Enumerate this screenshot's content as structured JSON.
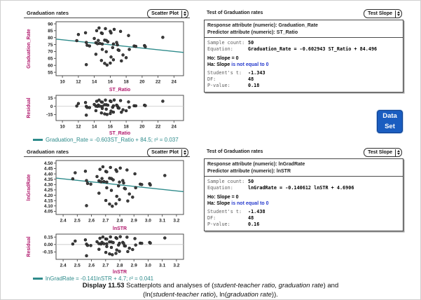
{
  "colors": {
    "line_teal": "#2e8b8b",
    "axis_magenta": "#b0176c",
    "hypothesis_blue": "#2438cc",
    "badge_blue": "#1a5dc0"
  },
  "top": {
    "graph_window": {
      "title": "Graduation rates",
      "dropdown": "Scatter Plot",
      "legend": "Graduation_Rate = -0.603ST_Ratio + 84.5; r² = 0.037"
    },
    "test_panel": {
      "title": "Test of Graduation rates",
      "dropdown": "Test Slope",
      "response": "Response attribute (numeric): Graduation_Rate",
      "predictor": "Predictor attribute (numeric): ST_Ratio",
      "sample_count_label": "Sample count:",
      "sample_count": "50",
      "equation_label": "Equation:",
      "equation": "Graduation_Rate = -0.602943 ST_Ratio + 84.496",
      "ho_label": "Ho:",
      "ho_text": "Slope = 0",
      "ha_label": "Ha:",
      "ha_prefix": "Slope",
      "ha_blue": "is not equal to",
      "ha_value": "0",
      "t_label": "Student's t:",
      "t_value": "-1.343",
      "df_label": "DF:",
      "df_value": "48",
      "p_label": "P-value:",
      "p_value": "0.18"
    }
  },
  "bottom": {
    "graph_window": {
      "title": "Graduation rates",
      "dropdown": "Scatter Plot",
      "legend": "lnGradRate = -0.141lnSTR + 4.7; r² = 0.041"
    },
    "test_panel": {
      "title": "Test of Graduation rates",
      "dropdown": "Test Slope",
      "response": "Response attribute (numeric): lnGradRate",
      "predictor": "Predictor attribute (numeric): lnSTR",
      "sample_count_label": "Sample count:",
      "sample_count": "50",
      "equation_label": "Equation:",
      "equation": "lnGradRate = -0.140612 lnSTR + 4.6906",
      "ho_label": "Ho:",
      "ho_text": "Slope = 0",
      "ha_label": "Ha:",
      "ha_prefix": "Slope",
      "ha_blue": "is not equal to",
      "ha_value": "0",
      "t_label": "Student's t:",
      "t_value": "-1.438",
      "df_label": "DF:",
      "df_value": "48",
      "p_label": "P-value:",
      "p_value": "0.16"
    }
  },
  "data_set_badge": {
    "line1": "Data",
    "line2": "Set"
  },
  "caption": {
    "label": "Display 11.53",
    "s1": "  Scatterplots and analyses of (",
    "s2": "student-teacher ratio, graduation rate",
    "s3": ") and",
    "s4": "(ln(",
    "s5": "student-teacher ratio",
    "s6": "), ln(",
    "s7": "graduation rate",
    "s8": "))."
  },
  "chart_data": {
    "type": "scatter",
    "note": "Four panels from the same 50 (ST_Ratio, Graduation_Rate) points: top scatter with least-squares line, its residual plot, and natural-log versions (lnSTR = ln ST_Ratio, lnGradRate = ln Graduation_Rate) below; residual = y - (intercept + slope*x).",
    "sample_count": 50,
    "points_st_ratio_vs_graduation_rate": [
      [
        11.8,
        77.8
      ],
      [
        12.0,
        82.3
      ],
      [
        12.9,
        83.5
      ],
      [
        13.0,
        76.5
      ],
      [
        13.0,
        60.5
      ],
      [
        13.1,
        74.5
      ],
      [
        13.4,
        74.0
      ],
      [
        14.0,
        79.4
      ],
      [
        14.2,
        76.3
      ],
      [
        14.2,
        68.0
      ],
      [
        14.3,
        85.0
      ],
      [
        14.4,
        75.6
      ],
      [
        14.5,
        78.0
      ],
      [
        14.6,
        87.0
      ],
      [
        14.7,
        75.8
      ],
      [
        14.9,
        83.4
      ],
      [
        14.9,
        63.5
      ],
      [
        15.0,
        83.0
      ],
      [
        15.0,
        75.4
      ],
      [
        15.0,
        71.5
      ],
      [
        15.3,
        78.2
      ],
      [
        15.3,
        61.4
      ],
      [
        15.4,
        86.5
      ],
      [
        15.5,
        78.0
      ],
      [
        15.5,
        69.8
      ],
      [
        15.6,
        60.2
      ],
      [
        15.7,
        77.0
      ],
      [
        16.0,
        84.6
      ],
      [
        16.0,
        61.6
      ],
      [
        16.1,
        83.4
      ],
      [
        16.1,
        66.0
      ],
      [
        16.3,
        72.8
      ],
      [
        16.4,
        75.4
      ],
      [
        16.4,
        64.0
      ],
      [
        16.5,
        86.0
      ],
      [
        16.8,
        76.5
      ],
      [
        16.9,
        74.8
      ],
      [
        17.0,
        71.2
      ],
      [
        17.1,
        70.8
      ],
      [
        17.3,
        84.5
      ],
      [
        17.4,
        63.2
      ],
      [
        17.6,
        67.5
      ],
      [
        18.0,
        65.5
      ],
      [
        18.3,
        81.5
      ],
      [
        18.4,
        71.5
      ],
      [
        19.0,
        74.0
      ],
      [
        19.2,
        73.7
      ],
      [
        20.3,
        74.3
      ],
      [
        20.4,
        73.4
      ],
      [
        22.6,
        80.2
      ]
    ],
    "panels": {
      "top_scatter": {
        "title": "Graduation rates",
        "xlabel": "ST_Ratio",
        "ylabel": "Graduation_Rate",
        "xlim": [
          9.2,
          25.2
        ],
        "ylim": [
          52.5,
          91.5
        ],
        "xticks": [
          10,
          12,
          14,
          16,
          18,
          20,
          22,
          24
        ],
        "xtick_labels": [
          "10",
          "12",
          "14",
          "16",
          "18",
          "20",
          "22",
          "24"
        ],
        "yticks": [
          55,
          60,
          65,
          70,
          75,
          80,
          85,
          90
        ],
        "ytick_labels": [
          "55",
          "60",
          "65",
          "70",
          "75",
          "80",
          "85",
          "90"
        ],
        "line": {
          "slope": -0.602943,
          "intercept": 84.496
        }
      },
      "top_residual": {
        "xlabel": "ST_Ratio",
        "ylabel": "Residual",
        "zero_line": true,
        "xlim": [
          9.2,
          25.2
        ],
        "ylim": [
          -26,
          20
        ],
        "xticks": [
          10,
          12,
          14,
          16,
          18,
          20,
          22,
          24
        ],
        "xtick_labels": [
          "10",
          "12",
          "14",
          "16",
          "18",
          "20",
          "22",
          "24"
        ],
        "yticks": [
          -15,
          0,
          15
        ],
        "ytick_labels": [
          "-15",
          "0",
          "15"
        ]
      },
      "bottom_scatter": {
        "title": "Graduation rates",
        "xlabel": "lnSTR",
        "ylabel": "lnGradRate",
        "xlim": [
          2.35,
          3.25
        ],
        "ylim": [
          4.02,
          4.525
        ],
        "xticks": [
          2.4,
          2.5,
          2.6,
          2.7,
          2.8,
          2.9,
          3.0,
          3.1,
          3.2
        ],
        "xtick_labels": [
          "2.4",
          "2.5",
          "2.6",
          "2.7",
          "2.8",
          "2.9",
          "3.0",
          "3.1",
          "3.2"
        ],
        "yticks": [
          4.05,
          4.1,
          4.15,
          4.2,
          4.25,
          4.3,
          4.35,
          4.4,
          4.45,
          4.5
        ],
        "ytick_labels": [
          "4.05",
          "4.10",
          "4.15",
          "4.20",
          "4.25",
          "4.30",
          "4.35",
          "4.40",
          "4.45",
          "4.50"
        ],
        "line": {
          "slope": -0.140612,
          "intercept": 4.6906
        }
      },
      "bottom_residual": {
        "xlabel": "lnSTR",
        "ylabel": "Residual",
        "zero_line": true,
        "xlim": [
          2.35,
          3.25
        ],
        "ylim": [
          -0.3,
          0.21
        ],
        "xticks": [
          2.4,
          2.5,
          2.6,
          2.7,
          2.8,
          2.9,
          3.0,
          3.1,
          3.2
        ],
        "xtick_labels": [
          "2.4",
          "2.5",
          "2.6",
          "2.7",
          "2.8",
          "2.9",
          "3.0",
          "3.1",
          "3.2"
        ],
        "yticks": [
          -0.15,
          0,
          0.15
        ],
        "ytick_labels": [
          "-0.15",
          "0.00",
          "0.15"
        ]
      }
    }
  }
}
